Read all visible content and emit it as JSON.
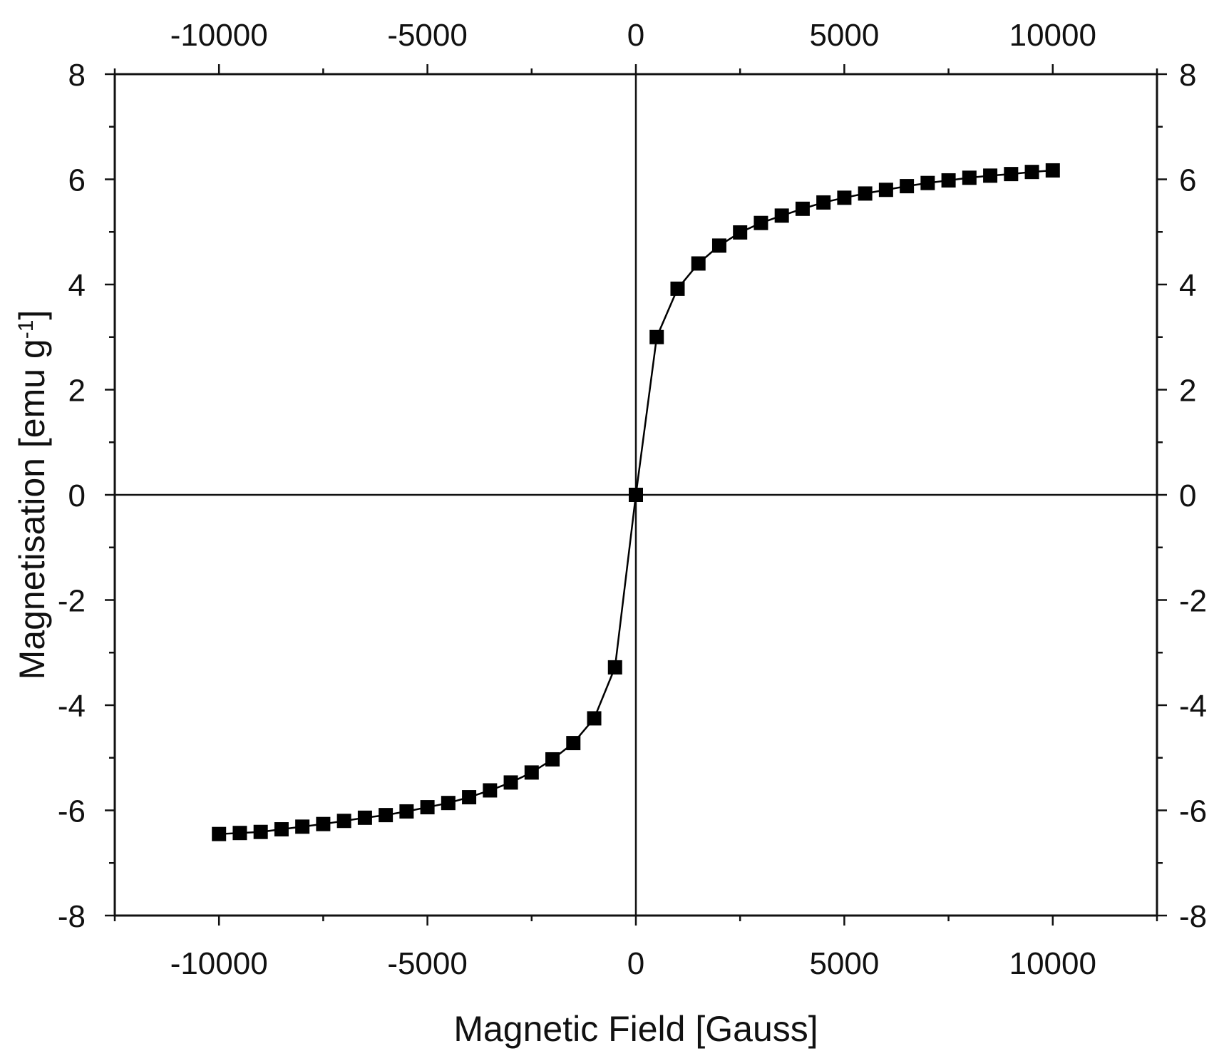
{
  "chart_data": {
    "type": "line",
    "xlabel": "Magnetic Field [Gauss]",
    "ylabel": "Magnetisation [emu g",
    "ylabel_superscript": "-1",
    "ylabel_close": "]",
    "xlim": [
      -12500,
      12500
    ],
    "ylim": [
      -8,
      8
    ],
    "x_ticks": [
      -10000,
      -5000,
      0,
      5000,
      10000
    ],
    "x_tick_labels": [
      "-10000",
      "-5000",
      "0",
      "5000",
      "10000"
    ],
    "y_ticks": [
      -8,
      -6,
      -4,
      -2,
      0,
      2,
      4,
      6,
      8
    ],
    "y_tick_labels": [
      "-8",
      "-6",
      "-4",
      "-2",
      "0",
      "2",
      "4",
      "6",
      "8"
    ],
    "mirror_axes": "top and right",
    "zero_lines": true,
    "grid": false,
    "marker": "square",
    "series_color": "#000000",
    "series": [
      {
        "x": [
          -10000,
          -9500,
          -9000,
          -8500,
          -8000,
          -7500,
          -7000,
          -6500,
          -6000,
          -5500,
          -5000,
          -4500,
          -4000,
          -3500,
          -3000,
          -2500,
          -2000,
          -1500,
          -1000,
          -500,
          0,
          500,
          1000,
          1500,
          2000,
          2500,
          3000,
          3500,
          4000,
          4500,
          5000,
          5500,
          6000,
          6500,
          7000,
          7500,
          8000,
          8500,
          9000,
          9500,
          10000
        ],
        "y": [
          -6.45,
          -6.43,
          -6.41,
          -6.36,
          -6.31,
          -6.26,
          -6.2,
          -6.14,
          -6.09,
          -6.02,
          -5.94,
          -5.86,
          -5.75,
          -5.62,
          -5.47,
          -5.28,
          -5.03,
          -4.72,
          -4.25,
          -3.28,
          0.0,
          3.0,
          3.92,
          4.4,
          4.74,
          4.99,
          5.17,
          5.31,
          5.44,
          5.56,
          5.65,
          5.73,
          5.8,
          5.87,
          5.93,
          5.98,
          6.03,
          6.07,
          6.1,
          6.14,
          6.17
        ]
      }
    ]
  }
}
